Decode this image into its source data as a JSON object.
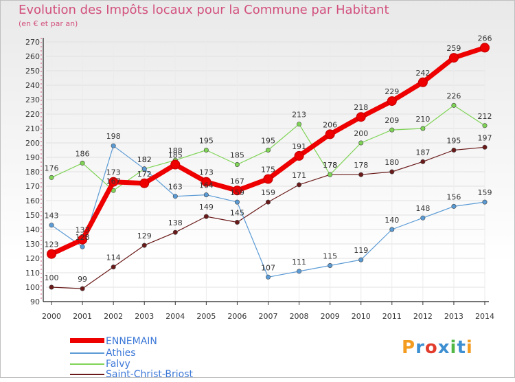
{
  "title": "Evolution des Impôts locaux pour la Commune par Habitant",
  "subtitle": "(en € et par an)",
  "logo": {
    "text": "Proxiti",
    "colors": [
      "#f39c1f",
      "#3d8fd1",
      "#e23c2c",
      "#3d8fd1",
      "#52b845",
      "#3d8fd1",
      "#f39c1f"
    ]
  },
  "chart_data": {
    "type": "line",
    "title": "Evolution des Impôts locaux pour la Commune par Habitant",
    "ylabel": "(en € et par an)",
    "xlabel": "",
    "x": [
      2000,
      2001,
      2002,
      2003,
      2004,
      2005,
      2006,
      2007,
      2008,
      2009,
      2010,
      2011,
      2012,
      2013,
      2014
    ],
    "ylim": [
      90,
      270
    ],
    "yticks": [
      90,
      100,
      110,
      120,
      130,
      140,
      150,
      160,
      170,
      180,
      190,
      200,
      210,
      220,
      230,
      240,
      250,
      260,
      270
    ],
    "grid": true,
    "legend_position": "bottom-left",
    "series": [
      {
        "name": "Saint-Christ-Briost",
        "color": "#6b1a1a",
        "values": [
          100,
          99,
          114,
          129,
          138,
          149,
          145,
          159,
          171,
          178,
          178,
          180,
          187,
          195,
          197
        ]
      },
      {
        "name": "Falvy",
        "color": "#7fd456",
        "values": [
          176,
          186,
          167,
          182,
          188,
          195,
          185,
          195,
          213,
          178,
          200,
          209,
          210,
          226,
          212
        ]
      },
      {
        "name": "Athies",
        "color": "#5b9bd5",
        "values": [
          143,
          128,
          198,
          182,
          163,
          164,
          159,
          107,
          111,
          115,
          119,
          140,
          148,
          156,
          159
        ]
      },
      {
        "name": "ENNEMAIN",
        "color": "#ee0000",
        "values": [
          123,
          133,
          173,
          172,
          185,
          173,
          167,
          175,
          191,
          206,
          218,
          229,
          242,
          259,
          266
        ]
      }
    ],
    "legend": [
      "ENNEMAIN",
      "Athies",
      "Falvy",
      "Saint-Christ-Briost"
    ]
  }
}
